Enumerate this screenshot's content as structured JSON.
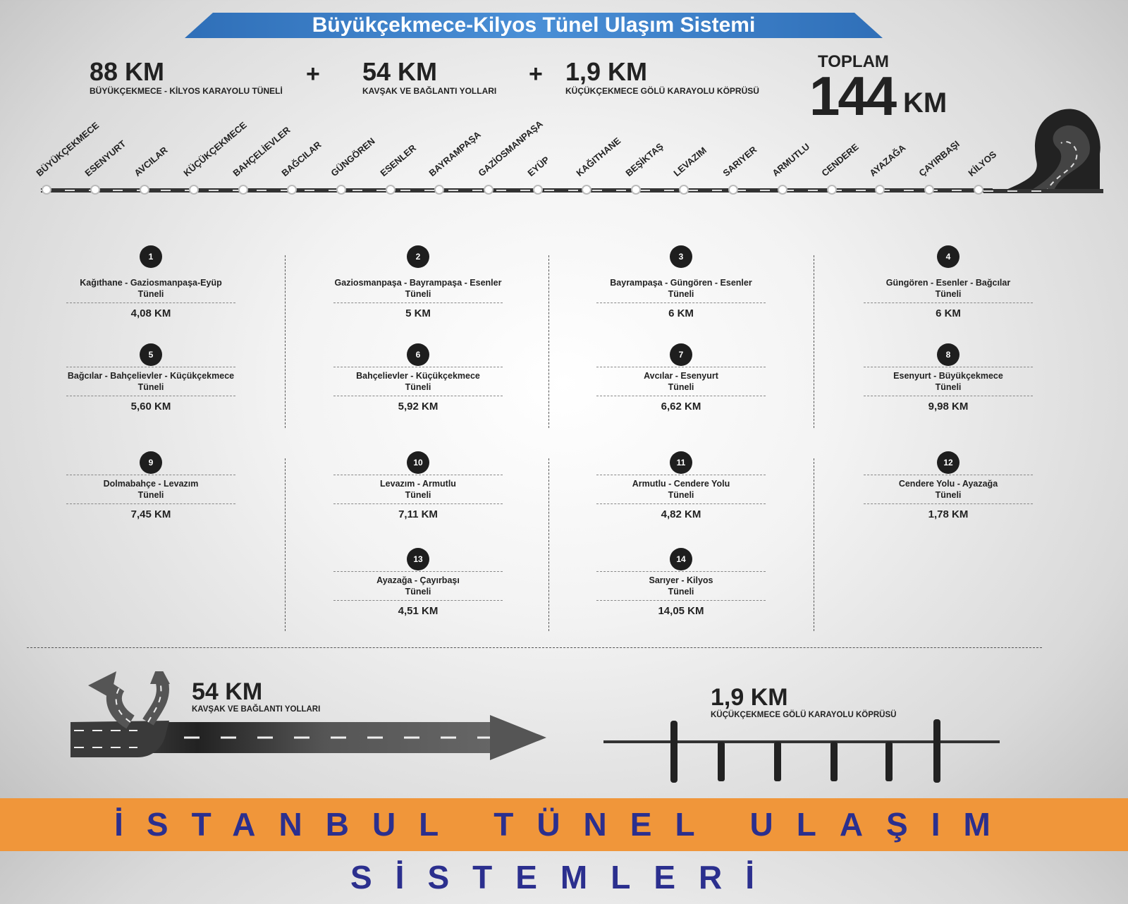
{
  "title": "Büyükçekmece-Kilyos Tünel Ulaşım Sistemi",
  "colors": {
    "banner": "#3a7fc4",
    "footer": "#f0963a",
    "footer_text": "#2b2f8e"
  },
  "stats": [
    {
      "value": "88 KM",
      "label": "BÜYÜKÇEKMECE - KİLYOS KARAYOLU TÜNELİ"
    },
    {
      "value": "54 KM",
      "label": "KAVŞAK VE BAĞLANTI YOLLARI"
    },
    {
      "value": "1,9 KM",
      "label": "KÜÇÜKÇEKMECE GÖLÜ KARAYOLU KÖPRÜSÜ"
    }
  ],
  "plus": "+",
  "total": {
    "label": "TOPLAM",
    "value": "144",
    "unit": "KM"
  },
  "stations": [
    "BÜYÜKÇEKMECE",
    "ESENYURT",
    "AVCILAR",
    "KÜÇÜKÇEKMECE",
    "BAHÇELİEVLER",
    "BAĞCILAR",
    "GÜNGÖREN",
    "ESENLER",
    "BAYRAMPAŞA",
    "GAZİOSMANPAŞA",
    "EYÜP",
    "KAĞITHANE",
    "BEŞİKTAŞ",
    "LEVAZIM",
    "SARIYER",
    "ARMUTLU",
    "CENDERE",
    "AYAZAĞA",
    "ÇAYIRBAŞI",
    "KİLYOS"
  ],
  "tunnels": [
    {
      "n": "1",
      "title": "Kağıthane - Gaziosmanpaşa-Eyüp",
      "sub": "Tüneli",
      "km": "4,08 KM"
    },
    {
      "n": "2",
      "title": "Gaziosmanpaşa - Bayrampaşa - Esenler",
      "sub": "Tüneli",
      "km": "5 KM"
    },
    {
      "n": "3",
      "title": "Bayrampaşa - Güngören - Esenler",
      "sub": "Tüneli",
      "km": "6 KM"
    },
    {
      "n": "4",
      "title": "Güngören - Esenler - Bağcılar",
      "sub": "Tüneli",
      "km": "6 KM"
    },
    {
      "n": "5",
      "title": "Bağcılar - Bahçelievler - Küçükçekmece",
      "sub": "Tüneli",
      "km": "5,60 KM"
    },
    {
      "n": "6",
      "title": "Bahçelievler - Küçükçekmece",
      "sub": "Tüneli",
      "km": "5,92 KM"
    },
    {
      "n": "7",
      "title": "Avcılar - Esenyurt",
      "sub": "Tüneli",
      "km": "6,62 KM"
    },
    {
      "n": "8",
      "title": "Esenyurt - Büyükçekmece",
      "sub": "Tüneli",
      "km": "9,98 KM"
    },
    {
      "n": "9",
      "title": "Dolmabahçe - Levazım",
      "sub": "Tüneli",
      "km": "7,45 KM"
    },
    {
      "n": "10",
      "title": "Levazım - Armutlu",
      "sub": "Tüneli",
      "km": "7,11 KM"
    },
    {
      "n": "11",
      "title": "Armutlu - Cendere Yolu",
      "sub": "Tüneli",
      "km": "4,82 KM"
    },
    {
      "n": "12",
      "title": "Cendere Yolu - Ayazağa",
      "sub": "Tüneli",
      "km": "1,78 KM"
    },
    {
      "n": "13",
      "title": "Ayazağa - Çayırbaşı",
      "sub": "Tüneli",
      "km": "4,51 KM"
    },
    {
      "n": "14",
      "title": "Sarıyer - Kilyos",
      "sub": "Tüneli",
      "km": "14,05 KM"
    }
  ],
  "bottom": {
    "roads": {
      "value": "54 KM",
      "label": "KAVŞAK VE BAĞLANTI YOLLARI"
    },
    "bridge": {
      "value": "1,9 KM",
      "label": "KÜÇÜKÇEKMECE GÖLÜ KARAYOLU KÖPRÜSÜ"
    }
  },
  "footer": "İSTANBUL TÜNEL ULAŞIM SİSTEMLERİ"
}
